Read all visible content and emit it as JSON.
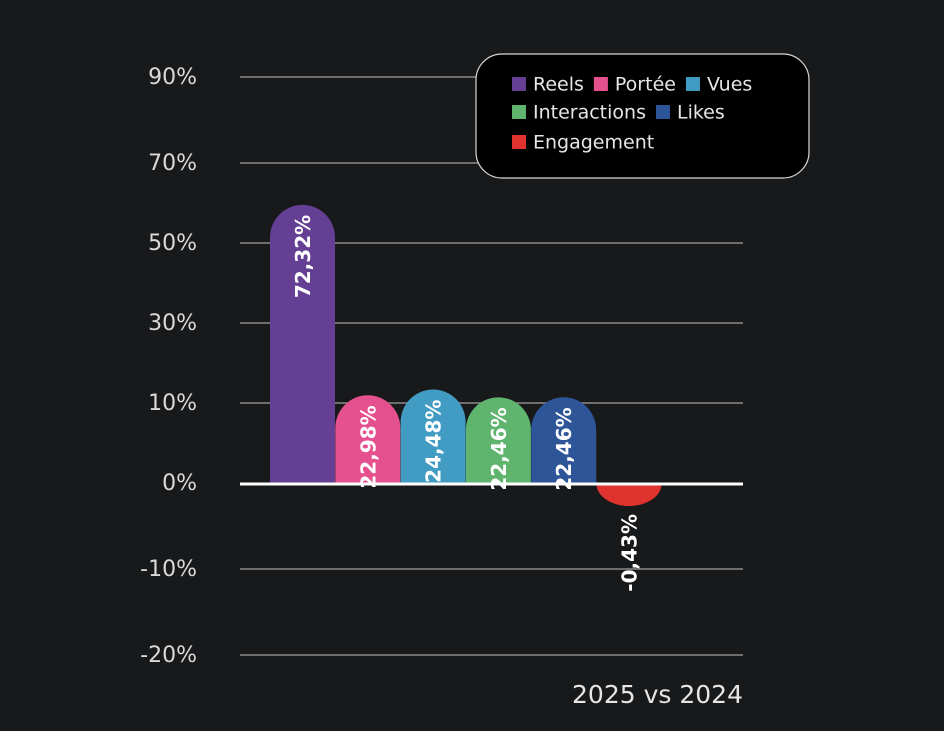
{
  "chart_data": {
    "type": "bar",
    "title": "",
    "xlabel": "2025 vs 2024",
    "ylabel": "",
    "y_ticks": [
      "90%",
      "70%",
      "50%",
      "30%",
      "10%",
      "0%",
      "-10%",
      "-20%"
    ],
    "grid": true,
    "legend_position": "top-right",
    "series": [
      {
        "name": "Reels",
        "value": 72.32,
        "label": "72,32%",
        "color": "#653f94"
      },
      {
        "name": "Portée",
        "value": 22.98,
        "label": "22,98%",
        "color": "#e5508f"
      },
      {
        "name": "Vues",
        "value": 24.48,
        "label": "24,48%",
        "color": "#429bc2"
      },
      {
        "name": "Interactions",
        "value": 22.46,
        "label": "22,46%",
        "color": "#5fb46e"
      },
      {
        "name": "Likes",
        "value": 22.46,
        "label": "22,46%",
        "color": "#2e5597"
      },
      {
        "name": "Engagement",
        "value": -0.43,
        "label": "-0,43%",
        "color": "#e0322f"
      }
    ]
  }
}
